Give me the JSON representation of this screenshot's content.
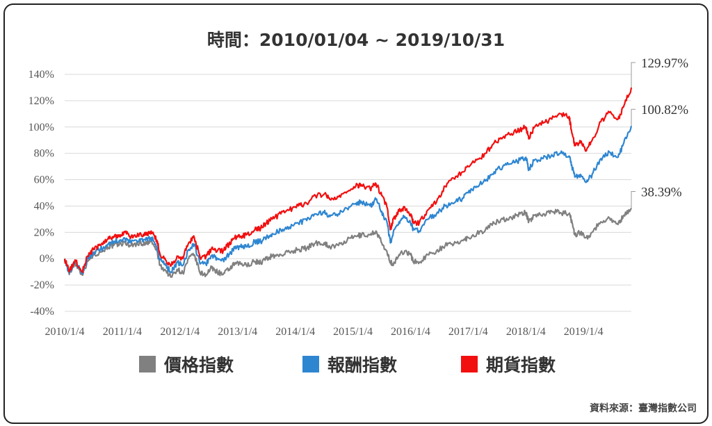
{
  "title": "時間：2010/01/04 ~ 2019/10/31",
  "source": "資料來源：臺灣指數公司",
  "chart_data": {
    "type": "line",
    "ylim": [
      -40,
      140
    ],
    "y_ticks": [
      140,
      120,
      100,
      80,
      60,
      40,
      20,
      0,
      -20,
      -40
    ],
    "y_tick_labels": [
      "140%",
      "120%",
      "100%",
      "80%",
      "60%",
      "40%",
      "20%",
      "0%",
      "-20%",
      "-40%"
    ],
    "x_range": [
      2010.0,
      2019.83
    ],
    "x_ticks": [
      2010,
      2011,
      2012,
      2013,
      2014,
      2015,
      2016,
      2017,
      2018,
      2019
    ],
    "x_tick_labels": [
      "2010/1/4",
      "2011/1/4",
      "2012/1/4",
      "2013/1/4",
      "2014/1/4",
      "2015/1/4",
      "2016/1/4",
      "2017/1/4",
      "2018/1/4",
      "2019/1/4"
    ],
    "grid": "horizontal",
    "legend_position": "bottom",
    "series": [
      {
        "name": "價格指數",
        "color": "#808080",
        "end_label": "38.39%",
        "x": [
          2010.0,
          2010.08,
          2010.18,
          2010.3,
          2010.4,
          2010.5,
          2010.62,
          2010.75,
          2010.85,
          2010.95,
          2011.05,
          2011.15,
          2011.3,
          2011.4,
          2011.5,
          2011.6,
          2011.65,
          2011.75,
          2011.85,
          2011.95,
          2012.05,
          2012.15,
          2012.25,
          2012.35,
          2012.45,
          2012.55,
          2012.65,
          2012.75,
          2012.85,
          2012.95,
          2013.05,
          2013.15,
          2013.3,
          2013.4,
          2013.5,
          2013.6,
          2013.75,
          2013.9,
          2014.05,
          2014.2,
          2014.35,
          2014.5,
          2014.6,
          2014.75,
          2014.9,
          2015.05,
          2015.15,
          2015.3,
          2015.4,
          2015.5,
          2015.6,
          2015.65,
          2015.7,
          2015.8,
          2015.9,
          2016.0,
          2016.05,
          2016.15,
          2016.3,
          2016.45,
          2016.6,
          2016.75,
          2016.9,
          2017.0,
          2017.15,
          2017.3,
          2017.45,
          2017.6,
          2017.75,
          2017.9,
          2018.0,
          2018.05,
          2018.15,
          2018.3,
          2018.45,
          2018.6,
          2018.75,
          2018.8,
          2018.85,
          2018.95,
          2019.05,
          2019.15,
          2019.3,
          2019.45,
          2019.6,
          2019.7,
          2019.83
        ],
        "values": [
          0,
          -12,
          -3,
          -12,
          -2,
          3,
          5,
          9,
          10,
          11,
          12,
          10,
          12,
          11,
          13,
          6,
          -5,
          -9,
          -14,
          -8,
          -11,
          0,
          3,
          -11,
          -12,
          -7,
          -10,
          -12,
          -8,
          -4,
          -4,
          -5,
          -2,
          -3,
          0,
          2,
          3,
          5,
          7,
          8,
          12,
          12,
          9,
          10,
          14,
          17,
          18,
          18,
          21,
          12,
          3,
          -2,
          -5,
          3,
          6,
          3,
          -2,
          -3,
          3,
          6,
          10,
          11,
          14,
          16,
          19,
          22,
          27,
          30,
          31,
          34,
          35,
          28,
          33,
          34,
          36,
          35,
          34,
          28,
          18,
          20,
          16,
          20,
          28,
          31,
          26,
          33,
          38.39
        ]
      },
      {
        "name": "報酬指數",
        "color": "#2e86d1",
        "end_label": "100.82%",
        "x": [
          2010.0,
          2010.08,
          2010.18,
          2010.3,
          2010.4,
          2010.5,
          2010.62,
          2010.75,
          2010.85,
          2010.95,
          2011.05,
          2011.15,
          2011.3,
          2011.4,
          2011.5,
          2011.6,
          2011.65,
          2011.75,
          2011.85,
          2011.95,
          2012.05,
          2012.15,
          2012.25,
          2012.35,
          2012.45,
          2012.55,
          2012.65,
          2012.75,
          2012.85,
          2012.95,
          2013.05,
          2013.15,
          2013.3,
          2013.4,
          2013.5,
          2013.6,
          2013.75,
          2013.9,
          2014.05,
          2014.2,
          2014.35,
          2014.5,
          2014.6,
          2014.75,
          2014.9,
          2015.05,
          2015.15,
          2015.3,
          2015.4,
          2015.5,
          2015.6,
          2015.65,
          2015.7,
          2015.8,
          2015.9,
          2016.0,
          2016.05,
          2016.15,
          2016.3,
          2016.45,
          2016.6,
          2016.75,
          2016.9,
          2017.0,
          2017.15,
          2017.3,
          2017.45,
          2017.6,
          2017.75,
          2017.9,
          2018.0,
          2018.05,
          2018.15,
          2018.3,
          2018.45,
          2018.6,
          2018.75,
          2018.8,
          2018.85,
          2018.95,
          2019.05,
          2019.15,
          2019.3,
          2019.45,
          2019.6,
          2019.7,
          2019.83
        ],
        "values": [
          0,
          -11,
          -2,
          -11,
          0,
          5,
          7,
          11,
          13,
          14,
          15,
          12,
          15,
          14,
          16,
          9,
          -1,
          -5,
          -10,
          -3,
          -5,
          7,
          11,
          -4,
          -4,
          2,
          0,
          -1,
          3,
          8,
          9,
          9,
          13,
          13,
          16,
          19,
          22,
          24,
          27,
          29,
          34,
          35,
          32,
          34,
          38,
          42,
          43,
          40,
          45,
          36,
          26,
          12,
          20,
          28,
          32,
          27,
          22,
          21,
          30,
          34,
          40,
          42,
          46,
          50,
          55,
          59,
          66,
          70,
          72,
          75,
          77,
          68,
          75,
          76,
          79,
          80,
          78,
          70,
          62,
          64,
          58,
          64,
          76,
          81,
          77,
          88,
          100.82
        ]
      },
      {
        "name": "期貨指數",
        "color": "#f20f0f",
        "end_label": "129.97%",
        "x": [
          2010.0,
          2010.08,
          2010.18,
          2010.3,
          2010.4,
          2010.5,
          2010.62,
          2010.75,
          2010.85,
          2010.95,
          2011.05,
          2011.15,
          2011.3,
          2011.4,
          2011.5,
          2011.6,
          2011.65,
          2011.75,
          2011.85,
          2011.95,
          2012.05,
          2012.15,
          2012.25,
          2012.35,
          2012.45,
          2012.55,
          2012.65,
          2012.75,
          2012.85,
          2012.95,
          2013.05,
          2013.15,
          2013.3,
          2013.4,
          2013.5,
          2013.6,
          2013.75,
          2013.9,
          2014.05,
          2014.2,
          2014.35,
          2014.5,
          2014.6,
          2014.75,
          2014.9,
          2015.05,
          2015.15,
          2015.3,
          2015.4,
          2015.5,
          2015.6,
          2015.65,
          2015.7,
          2015.8,
          2015.9,
          2016.0,
          2016.05,
          2016.15,
          2016.3,
          2016.45,
          2016.6,
          2016.75,
          2016.9,
          2017.0,
          2017.15,
          2017.3,
          2017.45,
          2017.6,
          2017.75,
          2017.9,
          2018.0,
          2018.05,
          2018.15,
          2018.3,
          2018.45,
          2018.6,
          2018.75,
          2018.8,
          2018.85,
          2018.95,
          2019.05,
          2019.15,
          2019.3,
          2019.45,
          2019.6,
          2019.7,
          2019.83
        ],
        "values": [
          0,
          -10,
          -1,
          -10,
          2,
          7,
          10,
          15,
          17,
          18,
          20,
          16,
          19,
          18,
          21,
          14,
          4,
          -1,
          -5,
          2,
          0,
          12,
          16,
          1,
          1,
          8,
          6,
          6,
          11,
          16,
          17,
          18,
          22,
          23,
          27,
          30,
          34,
          37,
          40,
          42,
          48,
          49,
          45,
          47,
          51,
          55,
          56,
          53,
          57,
          48,
          38,
          22,
          30,
          36,
          39,
          33,
          28,
          27,
          37,
          43,
          55,
          61,
          66,
          70,
          75,
          80,
          88,
          92,
          95,
          98,
          100,
          91,
          100,
          103,
          106,
          110,
          108,
          95,
          86,
          88,
          82,
          90,
          104,
          111,
          106,
          116,
          129.97
        ]
      }
    ]
  }
}
